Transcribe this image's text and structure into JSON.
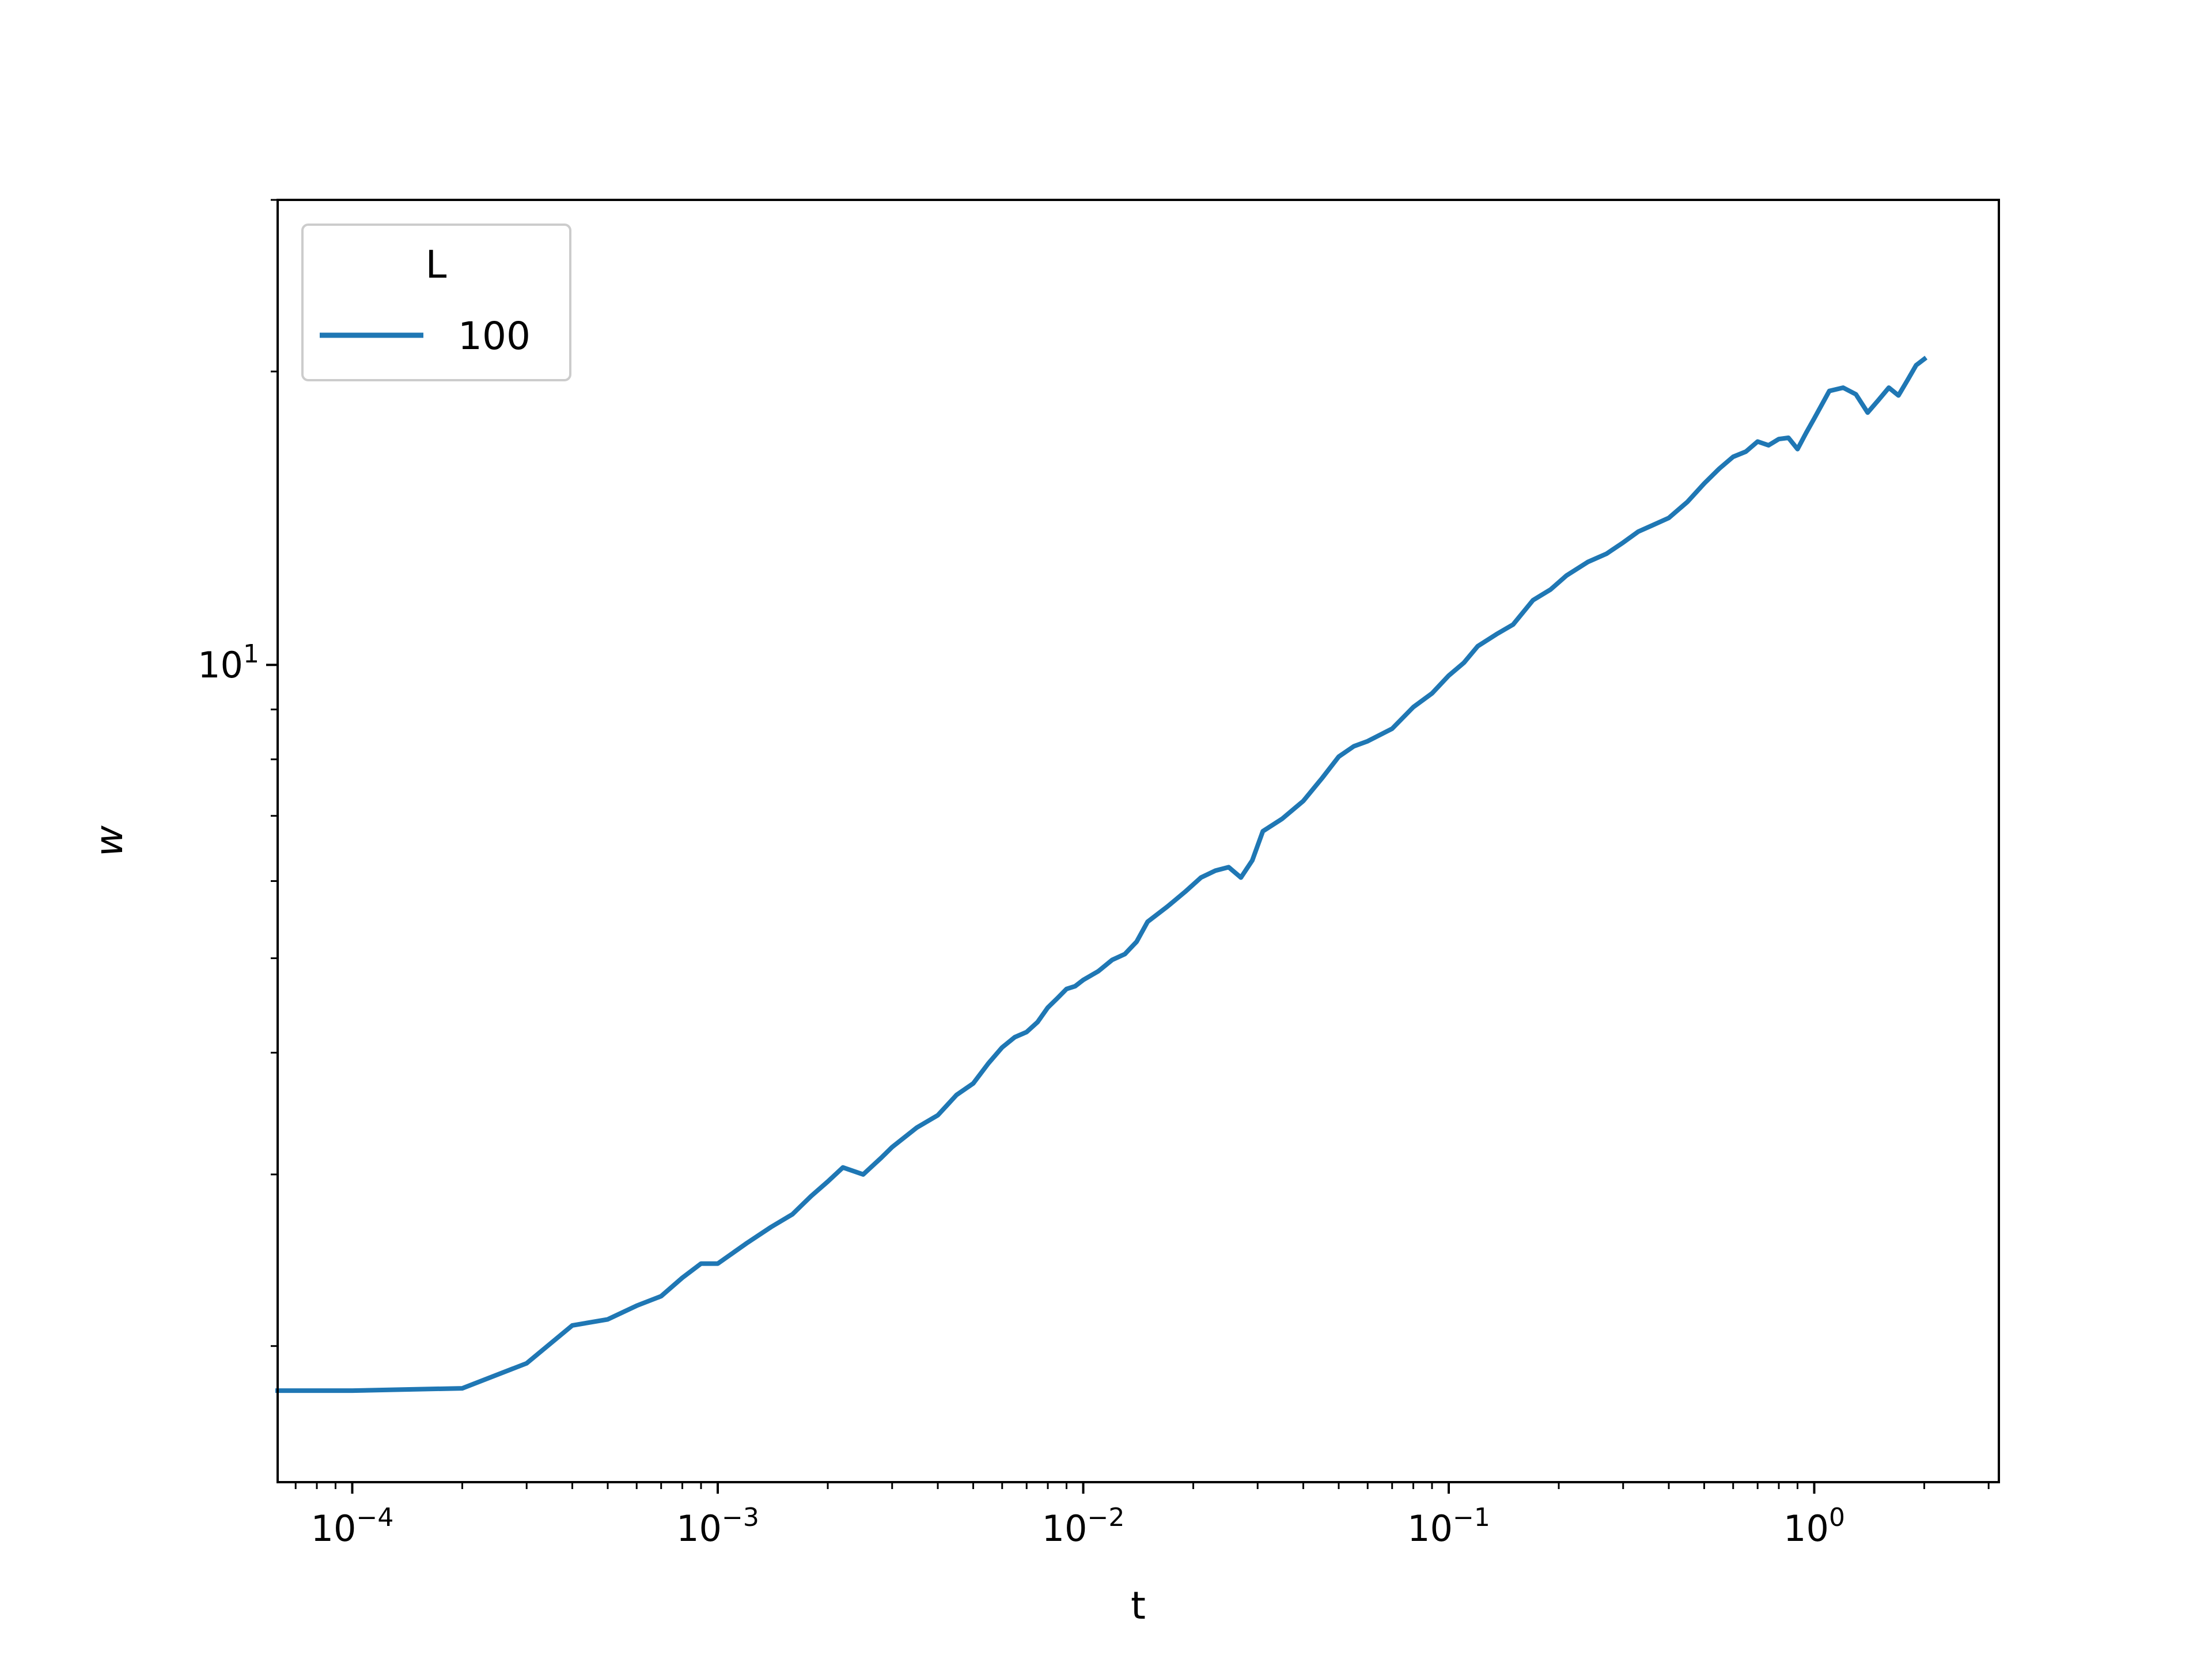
{
  "chart_data": {
    "type": "line",
    "title": "",
    "xlabel": "t",
    "ylabel": "w",
    "xscale": "log",
    "yscale": "log",
    "xlim": [
      6.25e-05,
      3.2
    ],
    "ylim": [
      1.45,
      30
    ],
    "x_major_ticks": [
      {
        "base": "10",
        "exp": "−4",
        "value": 0.0001
      },
      {
        "base": "10",
        "exp": "−3",
        "value": 0.001
      },
      {
        "base": "10",
        "exp": "−2",
        "value": 0.01
      },
      {
        "base": "10",
        "exp": "−1",
        "value": 0.1
      },
      {
        "base": "10",
        "exp": "0",
        "value": 1
      }
    ],
    "y_major_ticks": [
      {
        "base": "10",
        "exp": "1",
        "value": 10
      }
    ],
    "grid": false,
    "legend": {
      "title": "L",
      "placement": "upper left",
      "entries": [
        "100"
      ]
    },
    "series": [
      {
        "name": "100",
        "color": "#1f77b4",
        "x": [
          6.25e-05,
          0.0001,
          0.0002,
          0.0003,
          0.0004,
          0.0005,
          0.0006,
          0.0007,
          0.0008,
          0.0009,
          0.001,
          0.0012,
          0.0014,
          0.0016,
          0.0018,
          0.002,
          0.0022,
          0.0025,
          0.0028,
          0.003,
          0.0035,
          0.004,
          0.0045,
          0.005,
          0.0055,
          0.006,
          0.0065,
          0.007,
          0.0075,
          0.008,
          0.0085,
          0.009,
          0.0095,
          0.01,
          0.011,
          0.012,
          0.013,
          0.014,
          0.015,
          0.017,
          0.019,
          0.021,
          0.023,
          0.025,
          0.027,
          0.029,
          0.031,
          0.035,
          0.04,
          0.045,
          0.05,
          0.055,
          0.06,
          0.07,
          0.08,
          0.09,
          0.1,
          0.11,
          0.12,
          0.135,
          0.15,
          0.17,
          0.19,
          0.21,
          0.24,
          0.27,
          0.3,
          0.33,
          0.36,
          0.4,
          0.45,
          0.5,
          0.55,
          0.6,
          0.65,
          0.7,
          0.75,
          0.8,
          0.85,
          0.9,
          0.95,
          1.0,
          1.1,
          1.2,
          1.3,
          1.4,
          1.5,
          1.6,
          1.7,
          1.8,
          1.9,
          2.0
        ],
        "y": [
          1.8,
          1.8,
          1.81,
          1.92,
          2.1,
          2.13,
          2.2,
          2.25,
          2.35,
          2.43,
          2.43,
          2.55,
          2.65,
          2.73,
          2.85,
          2.95,
          3.05,
          3.0,
          3.12,
          3.2,
          3.35,
          3.45,
          3.62,
          3.72,
          3.9,
          4.05,
          4.15,
          4.2,
          4.3,
          4.45,
          4.55,
          4.65,
          4.68,
          4.75,
          4.85,
          4.98,
          5.05,
          5.2,
          5.45,
          5.65,
          5.85,
          6.05,
          6.15,
          6.2,
          6.05,
          6.3,
          6.75,
          6.95,
          7.25,
          7.65,
          8.05,
          8.25,
          8.35,
          8.6,
          9.05,
          9.35,
          9.75,
          10.05,
          10.45,
          10.75,
          11.0,
          11.65,
          11.95,
          12.35,
          12.75,
          13.0,
          13.35,
          13.7,
          13.9,
          14.15,
          14.7,
          15.35,
          15.9,
          16.35,
          16.55,
          16.95,
          16.8,
          17.05,
          17.1,
          16.65,
          17.3,
          17.9,
          19.1,
          19.25,
          18.95,
          18.15,
          18.7,
          19.25,
          18.9,
          19.6,
          20.3,
          20.6
        ]
      }
    ]
  }
}
